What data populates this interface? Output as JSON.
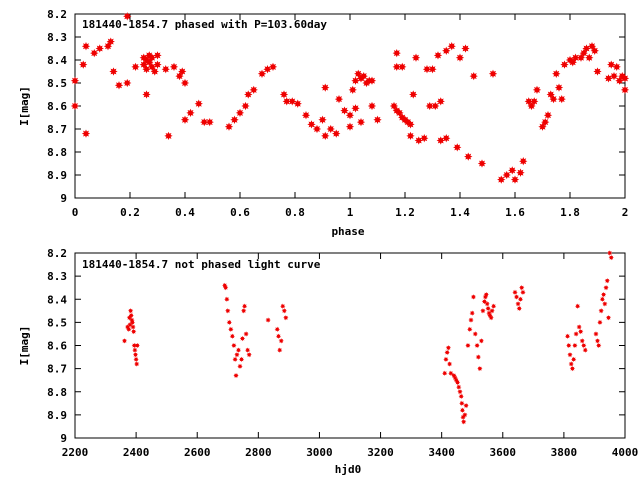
{
  "chart_data": [
    {
      "type": "scatter",
      "title": "181440-1854.7 phased with P=103.60day",
      "xlabel": "phase",
      "ylabel": "I[mag]",
      "xlim": [
        0,
        2
      ],
      "ylim": [
        8.2,
        9
      ],
      "y_inverted": true,
      "xticks": [
        0,
        0.2,
        0.4,
        0.6,
        0.8,
        1,
        1.2,
        1.4,
        1.6,
        1.8,
        2
      ],
      "xtick_labels": [
        "0",
        "0.2",
        "0.4",
        "0.6",
        "0.8",
        "1",
        "1.2",
        "1.4",
        "1.6",
        "1.8",
        "2"
      ],
      "yticks": [
        8.2,
        8.3,
        8.4,
        8.5,
        8.6,
        8.7,
        8.8,
        8.9,
        9
      ],
      "ytick_labels": [
        "8.2",
        "8.3",
        "8.4",
        "8.5",
        "8.6",
        "8.7",
        "8.8",
        "8.9",
        "9"
      ],
      "color": "#ee0000",
      "marker": "star-large",
      "points": [
        [
          0.0,
          8.49
        ],
        [
          0.0,
          8.6
        ],
        [
          0.03,
          8.42
        ],
        [
          0.04,
          8.34
        ],
        [
          0.04,
          8.72
        ],
        [
          0.07,
          8.37
        ],
        [
          0.09,
          8.35
        ],
        [
          0.12,
          8.34
        ],
        [
          0.13,
          8.32
        ],
        [
          0.14,
          8.45
        ],
        [
          0.16,
          8.51
        ],
        [
          0.19,
          8.21
        ],
        [
          0.19,
          8.5
        ],
        [
          0.22,
          8.43
        ],
        [
          0.25,
          8.39
        ],
        [
          0.25,
          8.42
        ],
        [
          0.26,
          8.4
        ],
        [
          0.26,
          8.44
        ],
        [
          0.27,
          8.38
        ],
        [
          0.27,
          8.41
        ],
        [
          0.28,
          8.43
        ],
        [
          0.28,
          8.39
        ],
        [
          0.29,
          8.45
        ],
        [
          0.3,
          8.42
        ],
        [
          0.3,
          8.38
        ],
        [
          0.26,
          8.55
        ],
        [
          0.33,
          8.44
        ],
        [
          0.34,
          8.73
        ],
        [
          0.36,
          8.43
        ],
        [
          0.38,
          8.47
        ],
        [
          0.39,
          8.45
        ],
        [
          0.4,
          8.5
        ],
        [
          0.4,
          8.66
        ],
        [
          0.42,
          8.63
        ],
        [
          0.45,
          8.59
        ],
        [
          0.47,
          8.67
        ],
        [
          0.49,
          8.67
        ],
        [
          0.56,
          8.69
        ],
        [
          0.58,
          8.66
        ],
        [
          0.6,
          8.63
        ],
        [
          0.62,
          8.6
        ],
        [
          0.63,
          8.55
        ],
        [
          0.65,
          8.53
        ],
        [
          0.68,
          8.46
        ],
        [
          0.7,
          8.44
        ],
        [
          0.72,
          8.43
        ],
        [
          0.76,
          8.55
        ],
        [
          0.77,
          8.58
        ],
        [
          0.79,
          8.58
        ],
        [
          0.81,
          8.59
        ],
        [
          0.84,
          8.64
        ],
        [
          0.86,
          8.68
        ],
        [
          0.88,
          8.7
        ],
        [
          0.9,
          8.66
        ],
        [
          0.91,
          8.73
        ],
        [
          0.91,
          8.52
        ],
        [
          0.93,
          8.7
        ],
        [
          0.95,
          8.72
        ],
        [
          0.96,
          8.57
        ],
        [
          0.98,
          8.62
        ],
        [
          1.0,
          8.64
        ],
        [
          1.0,
          8.69
        ],
        [
          1.01,
          8.53
        ],
        [
          1.02,
          8.49
        ],
        [
          1.02,
          8.61
        ],
        [
          1.03,
          8.46
        ],
        [
          1.04,
          8.48
        ],
        [
          1.04,
          8.67
        ],
        [
          1.05,
          8.47
        ],
        [
          1.06,
          8.5
        ],
        [
          1.07,
          8.49
        ],
        [
          1.08,
          8.49
        ],
        [
          1.08,
          8.6
        ],
        [
          1.1,
          8.66
        ],
        [
          1.16,
          8.6
        ],
        [
          1.17,
          8.43
        ],
        [
          1.17,
          8.37
        ],
        [
          1.17,
          8.62
        ],
        [
          1.18,
          8.63
        ],
        [
          1.19,
          8.65
        ],
        [
          1.19,
          8.43
        ],
        [
          1.2,
          8.66
        ],
        [
          1.21,
          8.67
        ],
        [
          1.22,
          8.68
        ],
        [
          1.22,
          8.73
        ],
        [
          1.23,
          8.55
        ],
        [
          1.24,
          8.39
        ],
        [
          1.25,
          8.75
        ],
        [
          1.27,
          8.74
        ],
        [
          1.28,
          8.44
        ],
        [
          1.29,
          8.6
        ],
        [
          1.3,
          8.44
        ],
        [
          1.31,
          8.6
        ],
        [
          1.32,
          8.38
        ],
        [
          1.33,
          8.75
        ],
        [
          1.33,
          8.58
        ],
        [
          1.35,
          8.36
        ],
        [
          1.35,
          8.74
        ],
        [
          1.37,
          8.34
        ],
        [
          1.39,
          8.78
        ],
        [
          1.4,
          8.39
        ],
        [
          1.42,
          8.35
        ],
        [
          1.43,
          8.82
        ],
        [
          1.45,
          8.47
        ],
        [
          1.48,
          8.85
        ],
        [
          1.52,
          8.46
        ],
        [
          1.55,
          8.92
        ],
        [
          1.57,
          8.9
        ],
        [
          1.59,
          8.88
        ],
        [
          1.6,
          8.92
        ],
        [
          1.62,
          8.89
        ],
        [
          1.63,
          8.84
        ],
        [
          1.65,
          8.58
        ],
        [
          1.66,
          8.6
        ],
        [
          1.67,
          8.58
        ],
        [
          1.68,
          8.53
        ],
        [
          1.7,
          8.69
        ],
        [
          1.71,
          8.67
        ],
        [
          1.72,
          8.64
        ],
        [
          1.73,
          8.55
        ],
        [
          1.74,
          8.57
        ],
        [
          1.75,
          8.46
        ],
        [
          1.76,
          8.52
        ],
        [
          1.77,
          8.57
        ],
        [
          1.78,
          8.42
        ],
        [
          1.8,
          8.4
        ],
        [
          1.81,
          8.41
        ],
        [
          1.82,
          8.39
        ],
        [
          1.84,
          8.39
        ],
        [
          1.85,
          8.37
        ],
        [
          1.86,
          8.35
        ],
        [
          1.87,
          8.39
        ],
        [
          1.88,
          8.34
        ],
        [
          1.89,
          8.36
        ],
        [
          1.9,
          8.45
        ],
        [
          1.95,
          8.42
        ],
        [
          1.96,
          8.47
        ],
        [
          1.97,
          8.43
        ],
        [
          1.98,
          8.49
        ],
        [
          2.0,
          8.53
        ],
        [
          2.0,
          8.48
        ],
        [
          1.99,
          8.47
        ],
        [
          1.94,
          8.48
        ]
      ]
    },
    {
      "type": "scatter",
      "title": "181440-1854.7 not phased light curve",
      "xlabel": "hjd0",
      "ylabel": "I[mag]",
      "xlim": [
        2200,
        4000
      ],
      "ylim": [
        8.2,
        9
      ],
      "y_inverted": true,
      "xticks": [
        2200,
        2400,
        2600,
        2800,
        3000,
        3200,
        3400,
        3600,
        3800,
        4000
      ],
      "xtick_labels": [
        "2200",
        "2400",
        "2600",
        "2800",
        "3000",
        "3200",
        "3400",
        "3600",
        "3800",
        "4000"
      ],
      "yticks": [
        8.2,
        8.3,
        8.4,
        8.5,
        8.6,
        8.7,
        8.8,
        8.9,
        9
      ],
      "ytick_labels": [
        "8.2",
        "8.3",
        "8.4",
        "8.5",
        "8.6",
        "8.7",
        "8.8",
        "8.9",
        "9"
      ],
      "color": "#ee0000",
      "marker": "star-small",
      "points": [
        [
          2362,
          8.58
        ],
        [
          2372,
          8.52
        ],
        [
          2376,
          8.53
        ],
        [
          2378,
          8.48
        ],
        [
          2380,
          8.51
        ],
        [
          2382,
          8.45
        ],
        [
          2384,
          8.47
        ],
        [
          2386,
          8.49
        ],
        [
          2388,
          8.5
        ],
        [
          2390,
          8.52
        ],
        [
          2392,
          8.54
        ],
        [
          2394,
          8.6
        ],
        [
          2396,
          8.62
        ],
        [
          2398,
          8.64
        ],
        [
          2400,
          8.66
        ],
        [
          2402,
          8.68
        ],
        [
          2404,
          8.6
        ],
        [
          2690,
          8.34
        ],
        [
          2693,
          8.35
        ],
        [
          2697,
          8.4
        ],
        [
          2700,
          8.45
        ],
        [
          2705,
          8.5
        ],
        [
          2710,
          8.53
        ],
        [
          2715,
          8.56
        ],
        [
          2720,
          8.6
        ],
        [
          2724,
          8.66
        ],
        [
          2727,
          8.73
        ],
        [
          2730,
          8.64
        ],
        [
          2735,
          8.62
        ],
        [
          2740,
          8.69
        ],
        [
          2745,
          8.66
        ],
        [
          2748,
          8.57
        ],
        [
          2752,
          8.45
        ],
        [
          2755,
          8.43
        ],
        [
          2760,
          8.55
        ],
        [
          2765,
          8.62
        ],
        [
          2770,
          8.64
        ],
        [
          2832,
          8.49
        ],
        [
          2862,
          8.53
        ],
        [
          2866,
          8.56
        ],
        [
          2870,
          8.62
        ],
        [
          2875,
          8.58
        ],
        [
          2880,
          8.43
        ],
        [
          2885,
          8.45
        ],
        [
          2890,
          8.48
        ],
        [
          3410,
          8.72
        ],
        [
          3414,
          8.66
        ],
        [
          3418,
          8.63
        ],
        [
          3422,
          8.61
        ],
        [
          3426,
          8.68
        ],
        [
          3430,
          8.72
        ],
        [
          3440,
          8.73
        ],
        [
          3444,
          8.74
        ],
        [
          3448,
          8.75
        ],
        [
          3452,
          8.76
        ],
        [
          3456,
          8.78
        ],
        [
          3460,
          8.8
        ],
        [
          3464,
          8.82
        ],
        [
          3466,
          8.85
        ],
        [
          3468,
          8.88
        ],
        [
          3470,
          8.91
        ],
        [
          3472,
          8.93
        ],
        [
          3476,
          8.9
        ],
        [
          3480,
          8.86
        ],
        [
          3486,
          8.6
        ],
        [
          3492,
          8.53
        ],
        [
          3496,
          8.49
        ],
        [
          3500,
          8.46
        ],
        [
          3504,
          8.39
        ],
        [
          3510,
          8.55
        ],
        [
          3516,
          8.6
        ],
        [
          3520,
          8.65
        ],
        [
          3525,
          8.7
        ],
        [
          3530,
          8.58
        ],
        [
          3535,
          8.45
        ],
        [
          3540,
          8.41
        ],
        [
          3543,
          8.39
        ],
        [
          3546,
          8.38
        ],
        [
          3549,
          8.42
        ],
        [
          3552,
          8.44
        ],
        [
          3555,
          8.46
        ],
        [
          3558,
          8.47
        ],
        [
          3562,
          8.48
        ],
        [
          3565,
          8.45
        ],
        [
          3570,
          8.43
        ],
        [
          3640,
          8.37
        ],
        [
          3645,
          8.39
        ],
        [
          3650,
          8.42
        ],
        [
          3654,
          8.44
        ],
        [
          3658,
          8.4
        ],
        [
          3662,
          8.35
        ],
        [
          3666,
          8.37
        ],
        [
          3812,
          8.56
        ],
        [
          3816,
          8.6
        ],
        [
          3820,
          8.64
        ],
        [
          3824,
          8.68
        ],
        [
          3828,
          8.7
        ],
        [
          3832,
          8.66
        ],
        [
          3836,
          8.6
        ],
        [
          3840,
          8.55
        ],
        [
          3845,
          8.43
        ],
        [
          3850,
          8.52
        ],
        [
          3855,
          8.54
        ],
        [
          3860,
          8.58
        ],
        [
          3865,
          8.6
        ],
        [
          3870,
          8.62
        ],
        [
          3905,
          8.55
        ],
        [
          3910,
          8.58
        ],
        [
          3914,
          8.6
        ],
        [
          3918,
          8.5
        ],
        [
          3922,
          8.45
        ],
        [
          3926,
          8.4
        ],
        [
          3930,
          8.38
        ],
        [
          3934,
          8.42
        ],
        [
          3938,
          8.35
        ],
        [
          3942,
          8.32
        ],
        [
          3946,
          8.48
        ],
        [
          3950,
          8.2
        ],
        [
          3955,
          8.22
        ]
      ]
    }
  ]
}
